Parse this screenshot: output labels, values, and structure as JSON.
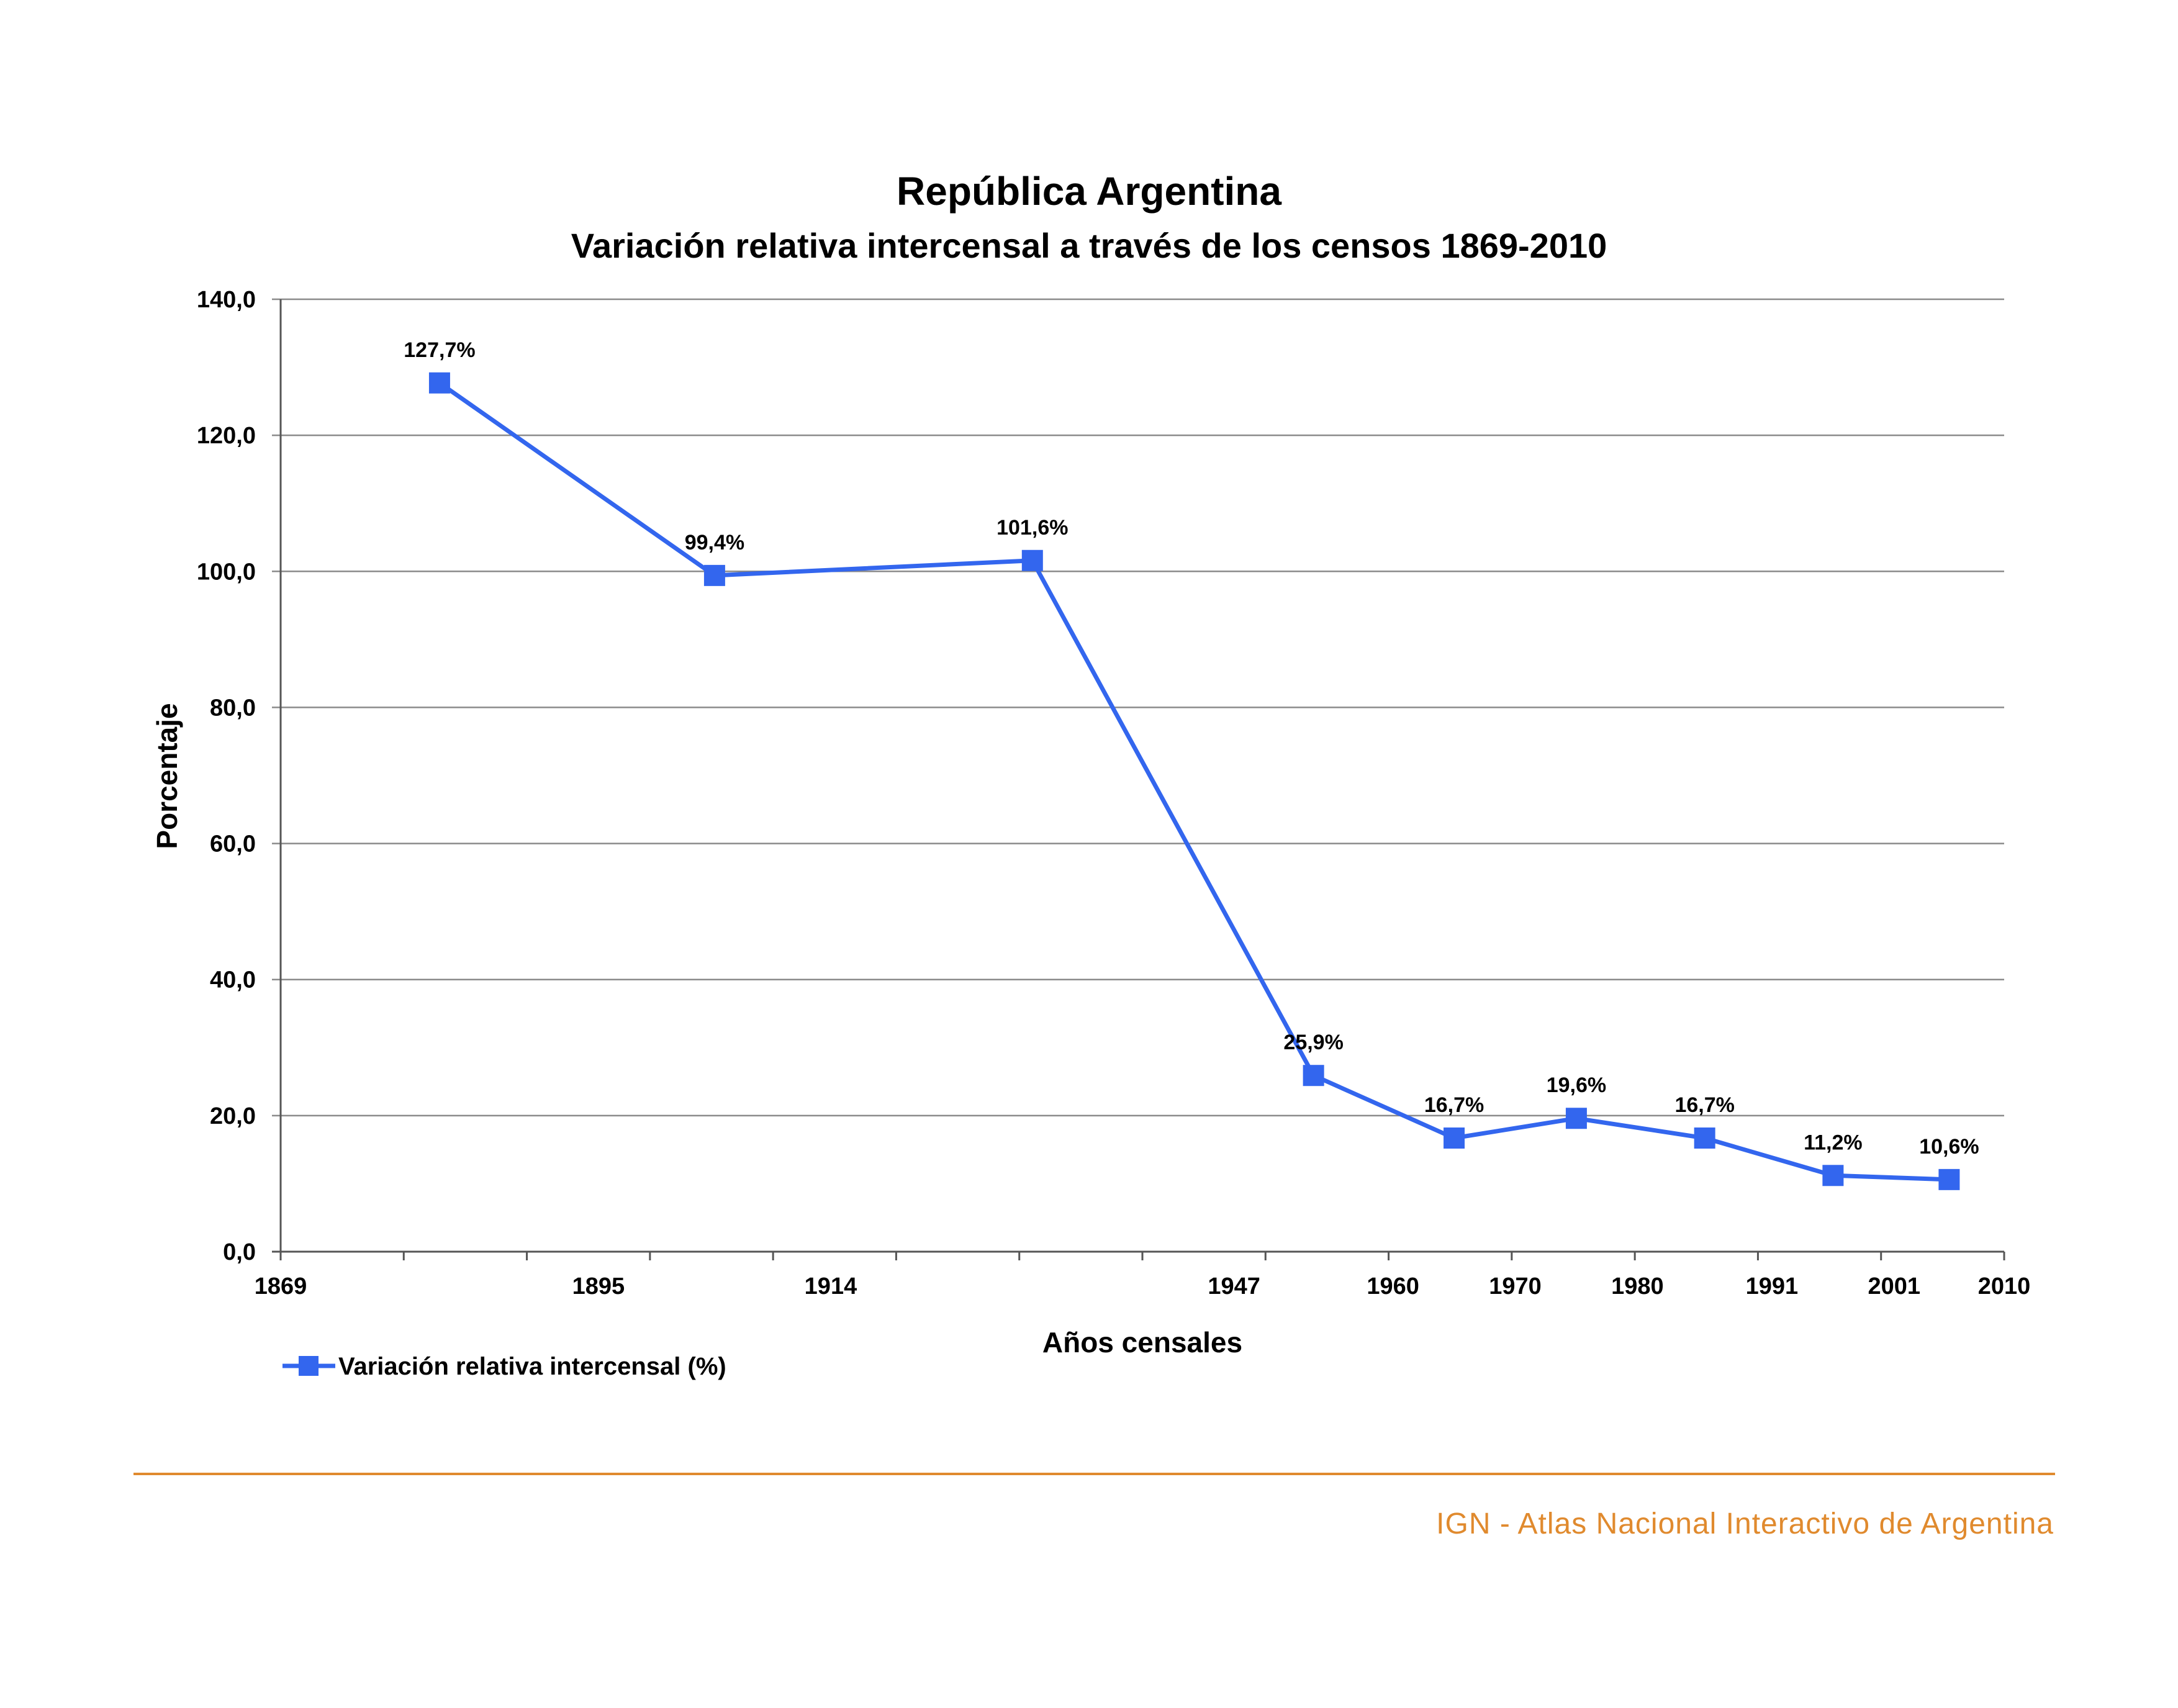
{
  "chart_data": {
    "type": "line",
    "title": "República Argentina",
    "subtitle": "Variación relativa intercensal a través de los censos 1869-2010",
    "xlabel": "Años censales",
    "ylabel": "Porcentaje",
    "ylim": [
      0,
      140
    ],
    "y_ticks": [
      "0,0",
      "20,0",
      "40,0",
      "60,0",
      "80,0",
      "100,0",
      "120,0",
      "140,0"
    ],
    "x_ticks": [
      "1869",
      "1895",
      "1914",
      "1947",
      "1960",
      "1970",
      "1980",
      "1991",
      "2001",
      "2010"
    ],
    "grid": true,
    "legend": "bottom-left",
    "series": [
      {
        "name": "Variación relativa intercensal (%)",
        "color": "#3366ee",
        "marker": "square",
        "x": [
          "1869-1895",
          "1895-1914",
          "1914-1947",
          "1947-1960",
          "1960-1970",
          "1970-1980",
          "1980-1991",
          "1991-2001",
          "2001-2010"
        ],
        "values": [
          127.7,
          99.4,
          101.6,
          25.9,
          16.7,
          19.6,
          16.7,
          11.2,
          10.6
        ],
        "labels": [
          "127,7%",
          "99,4%",
          "101,6%",
          "25,9%",
          "16,7%",
          "19,6%",
          "16,7%",
          "11,2%",
          "10,6%"
        ]
      }
    ]
  },
  "footer": {
    "text": "IGN - Atlas Nacional Interactivo de Argentina",
    "color": "#e08a2e"
  }
}
